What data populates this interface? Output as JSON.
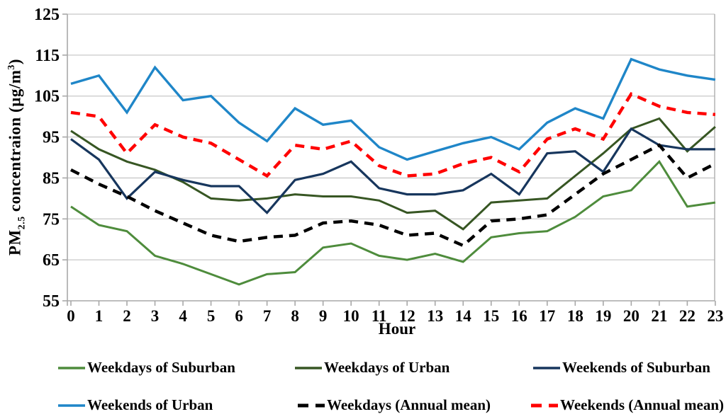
{
  "chart_data": {
    "type": "line",
    "xlabel": "Hour",
    "ylabel": "PM2.5 concentraion (µg/m³)",
    "ylabel_parts": {
      "prefix": "PM",
      "sub": "2.5",
      "mid": " concentraion (µg/m",
      "sup": "3",
      "suffix": ")"
    },
    "categories": [
      "0",
      "1",
      "2",
      "3",
      "4",
      "5",
      "6",
      "7",
      "8",
      "9",
      "10",
      "11",
      "12",
      "13",
      "14",
      "15",
      "16",
      "17",
      "18",
      "19",
      "20",
      "21",
      "22",
      "23"
    ],
    "ylim": [
      55,
      125
    ],
    "y_ticks": [
      125,
      115,
      105,
      95,
      85,
      75,
      65,
      55
    ],
    "grid": "horizontal gridlines on, plot box border on",
    "legend_position": "bottom, two rows",
    "series": [
      {
        "name": "Weekdays of Suburban",
        "color": "#4e8c3c",
        "dash": null,
        "width": 3,
        "values": [
          78,
          73.5,
          72,
          66,
          64,
          61.5,
          59,
          61.5,
          62,
          68,
          69,
          66,
          65,
          66.5,
          64.5,
          70.5,
          71.5,
          72,
          75.5,
          80.5,
          82,
          89,
          78,
          79
        ]
      },
      {
        "name": "Weekdays of Urban",
        "color": "#375623",
        "dash": null,
        "width": 3,
        "values": [
          96.5,
          92,
          89,
          87,
          84,
          80,
          79.5,
          80,
          81,
          80.5,
          80.5,
          79.5,
          76.5,
          77,
          72.5,
          79,
          79.5,
          80,
          85.5,
          91,
          97,
          99.5,
          91.5,
          97.5
        ]
      },
      {
        "name": "Weekends of Suburban",
        "color": "#17365d",
        "dash": null,
        "width": 3.2,
        "values": [
          94.5,
          89.5,
          80,
          86.5,
          84.5,
          83,
          83,
          76.5,
          84.5,
          86,
          89,
          82.5,
          81,
          81,
          82,
          86,
          81,
          91,
          91.5,
          86.5,
          97,
          93,
          92,
          92
        ]
      },
      {
        "name": "Weekends of Urban",
        "color": "#1f86c8",
        "dash": null,
        "width": 3.4,
        "values": [
          108,
          110,
          101,
          112,
          104,
          105,
          98.5,
          94,
          102,
          98,
          99,
          92.5,
          89.5,
          91.5,
          93.5,
          95,
          92,
          98.5,
          102,
          99.5,
          114,
          111.5,
          110,
          109
        ]
      },
      {
        "name": "Weekdays (Annual mean)",
        "color": "#000000",
        "dash": "13 9",
        "width": 4.4,
        "values": [
          87,
          83.5,
          80.5,
          77,
          74,
          71,
          69.5,
          70.5,
          71,
          74,
          74.5,
          73.5,
          71,
          71.5,
          68.5,
          74.5,
          75,
          76,
          81,
          86,
          89.5,
          93,
          85,
          88.5
        ]
      },
      {
        "name": "Weekends (Annual mean)",
        "color": "#ff0000",
        "dash": "13 9",
        "width": 4.4,
        "values": [
          101,
          100,
          91,
          98,
          95,
          93.5,
          89.5,
          85.5,
          93,
          92,
          94,
          88,
          85.5,
          86,
          88.5,
          90,
          86.5,
          94.5,
          97,
          94.5,
          105.5,
          102.5,
          101,
          100.5
        ]
      }
    ]
  },
  "colors": {
    "background": "#ffffff",
    "grid": "#c8c8c8",
    "spine": "#a8a8a8",
    "tick_label": "#000000"
  },
  "layout_note": "single line chart, 24 hourly points, legend below axis"
}
